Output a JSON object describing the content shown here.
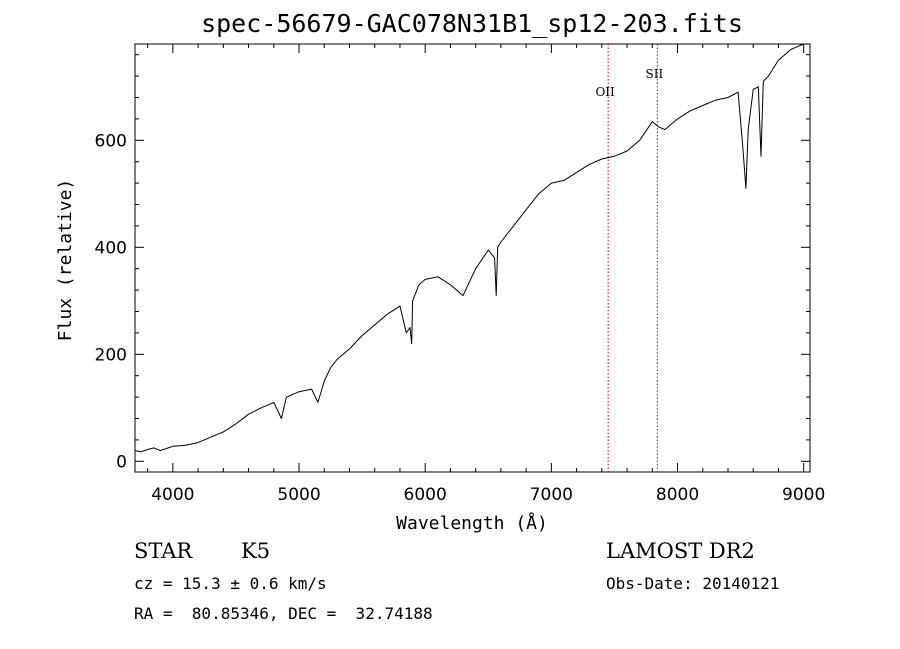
{
  "chart_data": {
    "type": "line",
    "title": "spec-56679-GAC078N31B1_sp12-203.fits",
    "xlabel": "Wavelength (Å)",
    "ylabel": "Flux (relative)",
    "xlim": [
      3700,
      9050
    ],
    "ylim": [
      -20,
      780
    ],
    "xticks": [
      4000,
      5000,
      6000,
      7000,
      8000,
      9000
    ],
    "yticks": [
      0,
      200,
      400,
      600
    ],
    "grid": false,
    "series": [
      {
        "x": [
          3700,
          3750,
          3800,
          3850,
          3900,
          3950,
          4000,
          4100,
          4200,
          4300,
          4400,
          4500,
          4600,
          4700,
          4800,
          4860,
          4900,
          5000,
          5100,
          5150,
          5200,
          5250,
          5300,
          5400,
          5500,
          5600,
          5700,
          5800,
          5850,
          5880,
          5893,
          5900,
          5950,
          6000,
          6100,
          6200,
          6300,
          6400,
          6500,
          6550,
          6563,
          6575,
          6600,
          6700,
          6800,
          6900,
          7000,
          7100,
          7200,
          7300,
          7400,
          7500,
          7600,
          7700,
          7800,
          7850,
          7900,
          8000,
          8100,
          8200,
          8300,
          8400,
          8480,
          8498,
          8520,
          8542,
          8560,
          8600,
          8640,
          8662,
          8680,
          8720,
          8760,
          8800,
          8850,
          8900,
          8950,
          9000
        ],
        "y": [
          20,
          18,
          22,
          25,
          20,
          24,
          28,
          30,
          35,
          45,
          55,
          70,
          88,
          100,
          110,
          80,
          120,
          130,
          135,
          110,
          150,
          175,
          190,
          210,
          235,
          255,
          275,
          290,
          240,
          250,
          220,
          300,
          330,
          340,
          345,
          330,
          310,
          360,
          395,
          380,
          310,
          400,
          410,
          440,
          470,
          500,
          520,
          525,
          540,
          555,
          565,
          570,
          580,
          600,
          635,
          625,
          620,
          640,
          655,
          665,
          675,
          680,
          690,
          640,
          580,
          510,
          620,
          695,
          700,
          570,
          710,
          720,
          735,
          750,
          760,
          770,
          775,
          780
        ]
      }
    ],
    "annotations": [
      {
        "label": "OII",
        "x": 7450
      },
      {
        "label": "SII",
        "x": 7840
      }
    ]
  },
  "info": {
    "object_class": "STAR",
    "subclass": "K5",
    "survey": "LAMOST DR2",
    "redshift": "cz = 15.3 ± 0.6 km/s",
    "obs_date": "Obs-Date: 20140121",
    "coords": "RA =  80.85346, DEC =  32.74188"
  },
  "colors": {
    "line": "#000000",
    "marker_line": "#cc0000"
  }
}
